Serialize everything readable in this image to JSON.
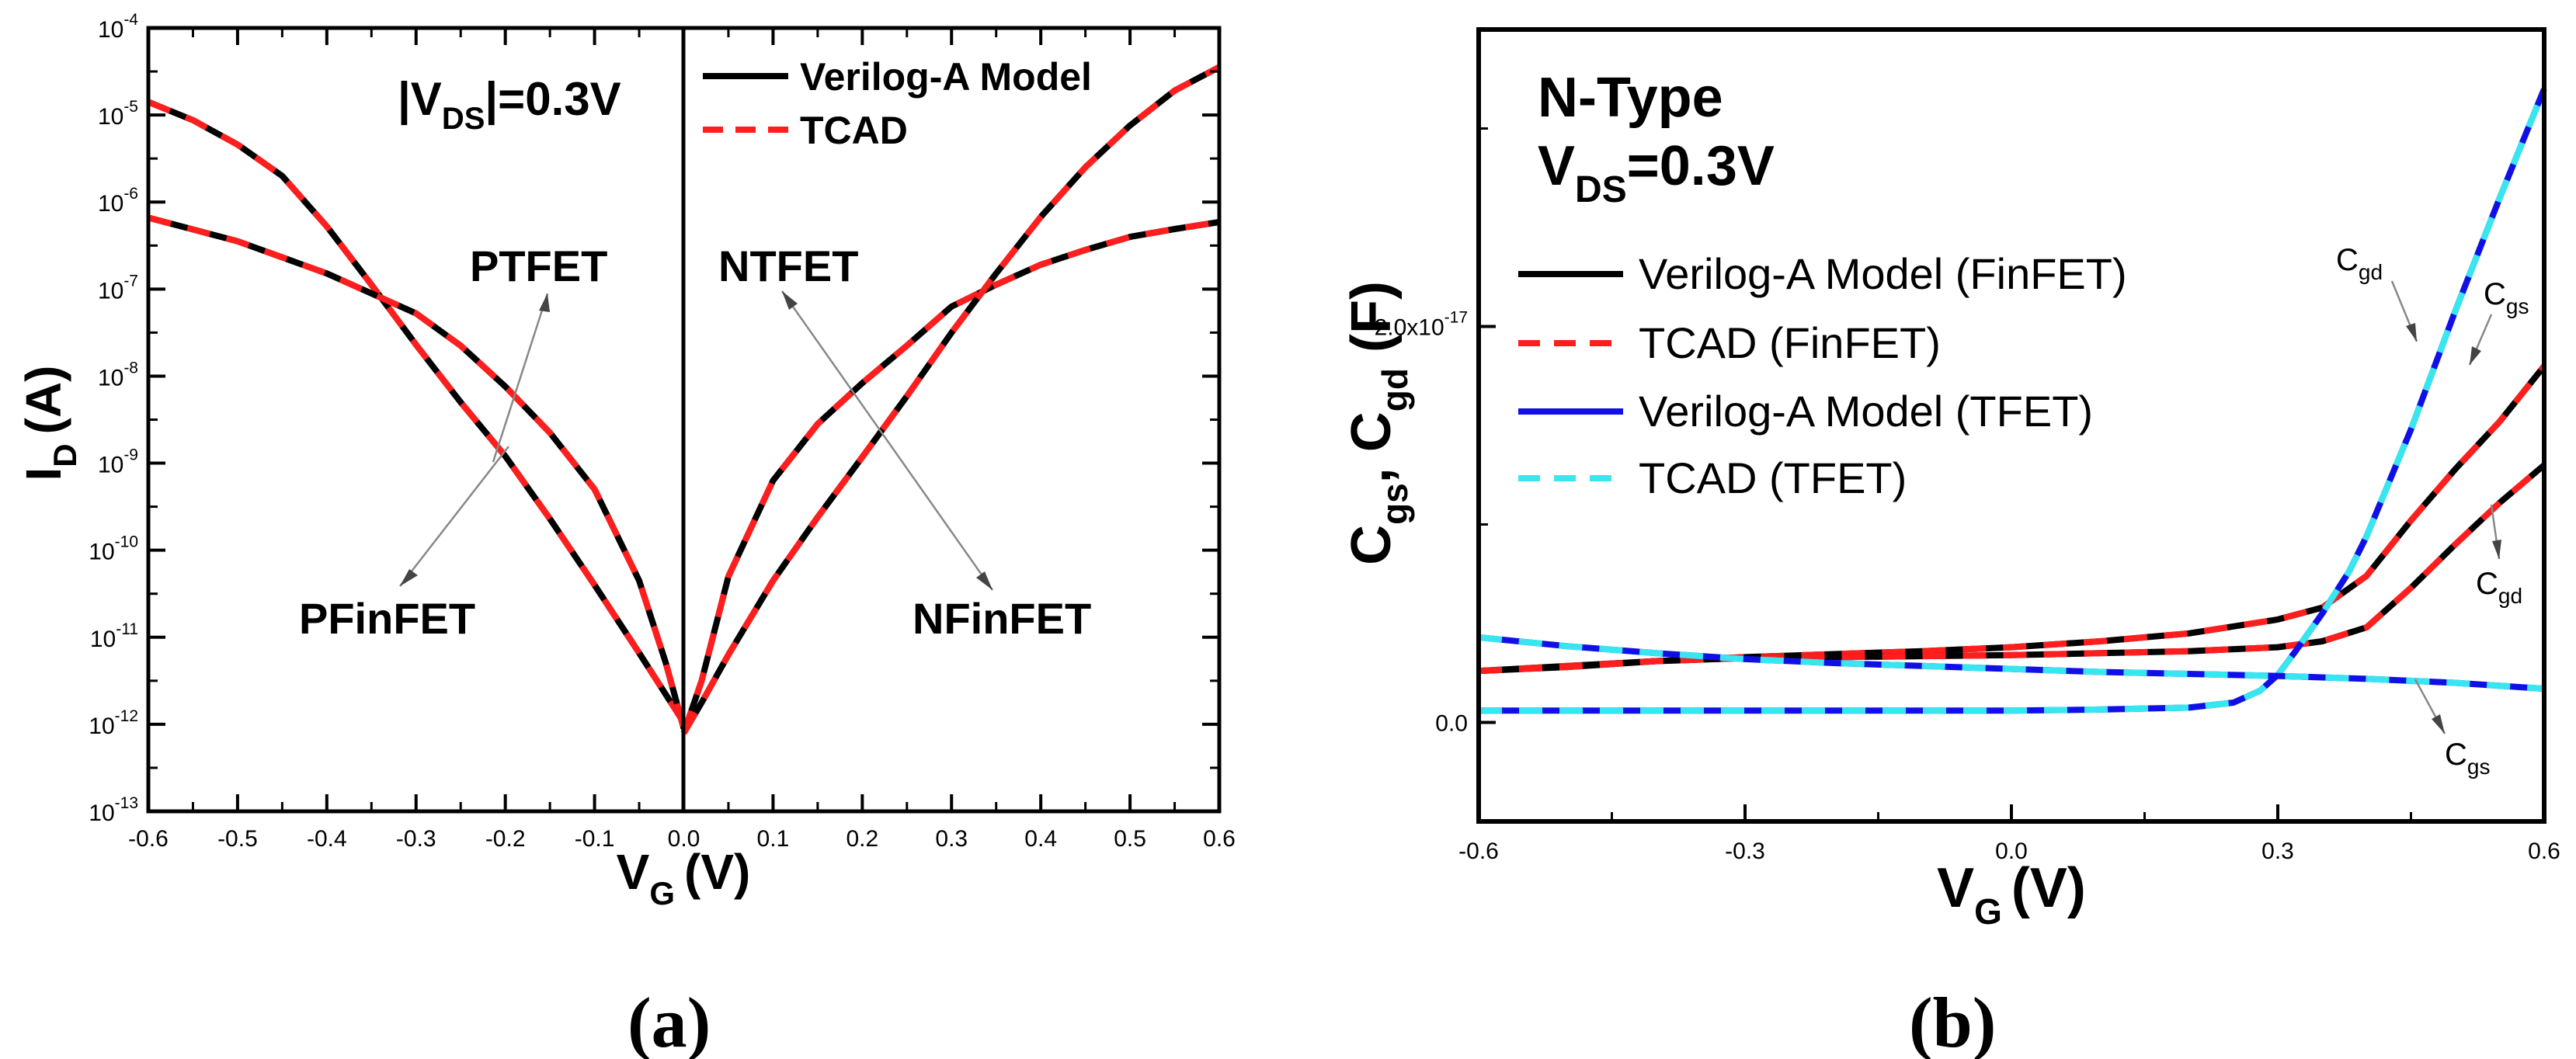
{
  "colors": {
    "black": "#000000",
    "red": "#ff1e1e",
    "blue": "#1010e6",
    "cyan": "#38e6f0"
  },
  "chart_data": [
    {
      "type": "line",
      "panel_label": "(a)",
      "title": "",
      "xlabel": "V",
      "xlabel_sub": "G",
      "xlabel_unit": "(V)",
      "ylabel": "I",
      "ylabel_sub": "D",
      "ylabel_unit": "(A)",
      "xlim": [
        -0.6,
        0.6
      ],
      "ylim_log10": [
        -13,
        -4
      ],
      "y_scale": "log",
      "x_ticks": [
        -0.6,
        -0.5,
        -0.4,
        -0.3,
        -0.2,
        -0.1,
        0.0,
        0.1,
        0.2,
        0.3,
        0.4,
        0.5,
        0.6
      ],
      "x_tick_labels": [
        "-0.6",
        "-0.5",
        "-0.4",
        "-0.3",
        "-0.2",
        "-0.1",
        "0.0",
        "0.1",
        "0.2",
        "0.3",
        "0.4",
        "0.5",
        "0.6"
      ],
      "y_tick_exponents": [
        -13,
        -12,
        -11,
        -10,
        -9,
        -8,
        -7,
        -6,
        -5,
        -4
      ],
      "y_tick_base": "10",
      "y_tick_exp_labels": [
        "-13",
        "-12",
        "-11",
        "-10",
        "-9",
        "-8",
        "-7",
        "-6",
        "-5",
        "-4"
      ],
      "condition_label": {
        "prefix": "|V",
        "sub": "DS",
        "suffix": "|=0.3V"
      },
      "legend": [
        {
          "label": "Verilog-A Model",
          "style": "solid",
          "color": "#000000"
        },
        {
          "label": "TCAD",
          "style": "dashed",
          "color": "#ff1e1e"
        }
      ],
      "annotations": [
        {
          "text": "PTFET",
          "series": "PTFET"
        },
        {
          "text": "NTFET",
          "series": "NTFET"
        },
        {
          "text": "PFinFET",
          "series": "PFinFET"
        },
        {
          "text": "NFinFET",
          "series": "NFinFET"
        }
      ],
      "series": [
        {
          "name": "PFinFET",
          "x": [
            -0.6,
            -0.55,
            -0.5,
            -0.45,
            -0.4,
            -0.35,
            -0.3,
            -0.25,
            -0.2,
            -0.15,
            -0.1,
            -0.05,
            -0.02,
            0.0
          ],
          "log10_y": [
            -4.85,
            -5.06,
            -5.34,
            -5.7,
            -6.28,
            -6.95,
            -7.64,
            -8.3,
            -8.92,
            -9.64,
            -10.4,
            -11.18,
            -11.66,
            -11.98
          ]
        },
        {
          "name": "PTFET",
          "x": [
            -0.6,
            -0.5,
            -0.4,
            -0.3,
            -0.25,
            -0.2,
            -0.15,
            -0.1,
            -0.05,
            -0.02,
            0.0
          ],
          "log10_y": [
            -6.18,
            -6.45,
            -6.82,
            -7.28,
            -7.65,
            -8.12,
            -8.65,
            -9.3,
            -10.35,
            -11.3,
            -12.05
          ]
        },
        {
          "name": "NTFET",
          "x": [
            0.0,
            0.02,
            0.05,
            0.1,
            0.15,
            0.2,
            0.25,
            0.3,
            0.35,
            0.4,
            0.45,
            0.5,
            0.55,
            0.6
          ],
          "log10_y": [
            -12.1,
            -11.5,
            -10.3,
            -9.2,
            -8.55,
            -8.08,
            -7.65,
            -7.2,
            -6.95,
            -6.72,
            -6.55,
            -6.4,
            -6.31,
            -6.23
          ]
        },
        {
          "name": "NFinFET",
          "x": [
            0.0,
            0.02,
            0.05,
            0.1,
            0.15,
            0.2,
            0.25,
            0.3,
            0.35,
            0.4,
            0.45,
            0.5,
            0.55,
            0.6
          ],
          "log10_y": [
            -12.1,
            -11.75,
            -11.2,
            -10.35,
            -9.62,
            -8.93,
            -8.23,
            -7.5,
            -6.82,
            -6.17,
            -5.6,
            -5.12,
            -4.72,
            -4.45
          ]
        }
      ]
    },
    {
      "type": "line",
      "panel_label": "(b)",
      "title": "",
      "xlabel": "V",
      "xlabel_sub": "G",
      "xlabel_unit": "(V)",
      "ylabel_parts": [
        {
          "t": "C",
          "sub": "gs"
        },
        {
          "t": ", "
        },
        {
          "t": "C",
          "sub": "gd"
        },
        {
          "t": " (F)"
        }
      ],
      "xlim": [
        -0.6,
        0.6
      ],
      "ylim": [
        -5e-18,
        3.5e-17
      ],
      "x_ticks": [
        -0.6,
        -0.3,
        0.0,
        0.3,
        0.6
      ],
      "x_tick_labels": [
        "-0.6",
        "-0.3",
        "0.0",
        "0.3",
        "0.6"
      ],
      "y_ticks": [
        0.0,
        2e-17
      ],
      "y_tick_labels": [
        {
          "base": "0.0",
          "exp": ""
        },
        {
          "base": "2.0x10",
          "exp": "-17"
        }
      ],
      "title_lines": [
        {
          "text": "N-Type"
        },
        {
          "prefix": "V",
          "sub": "DS",
          "suffix": "=0.3V"
        }
      ],
      "legend": [
        {
          "label": "Verilog-A Model (FinFET)",
          "style": "solid",
          "color": "#000000"
        },
        {
          "label": "TCAD (FinFET)",
          "style": "dashed",
          "color": "#ff1e1e"
        },
        {
          "label": "Verilog-A Model (TFET)",
          "style": "solid",
          "color": "#1010e6"
        },
        {
          "label": "TCAD (TFET)",
          "style": "dashed",
          "color": "#38e6f0"
        }
      ],
      "annotations": [
        {
          "t": "C",
          "sub": "gd",
          "series": "TFET Cgd"
        },
        {
          "t": "C",
          "sub": "gs",
          "series": "FinFET Cgs"
        },
        {
          "t": "C",
          "sub": "gd",
          "series": "FinFET Cgd"
        },
        {
          "t": "C",
          "sub": "gs",
          "series": "TFET Cgs"
        }
      ],
      "series": [
        {
          "name": "FinFET Cgs",
          "x": [
            -0.6,
            -0.5,
            -0.4,
            -0.3,
            -0.2,
            -0.1,
            0.0,
            0.1,
            0.2,
            0.3,
            0.35,
            0.4,
            0.45,
            0.5,
            0.55,
            0.6
          ],
          "y": [
            2.6e-18,
            2.85e-18,
            3.1e-18,
            3.3e-18,
            3.45e-18,
            3.6e-18,
            3.8e-18,
            4.1e-18,
            4.5e-18,
            5.2e-18,
            5.8e-18,
            7.4e-18,
            1.02e-17,
            1.28e-17,
            1.52e-17,
            1.8e-17
          ]
        },
        {
          "name": "FinFET Cgd",
          "x": [
            -0.6,
            -0.5,
            -0.4,
            -0.3,
            -0.2,
            -0.1,
            0.0,
            0.1,
            0.2,
            0.3,
            0.35,
            0.4,
            0.45,
            0.5,
            0.55,
            0.6
          ],
          "y": [
            2.6e-18,
            2.8e-18,
            3.1e-18,
            3.25e-18,
            3.3e-18,
            3.35e-18,
            3.4e-18,
            3.5e-18,
            3.6e-18,
            3.8e-18,
            4.1e-18,
            4.8e-18,
            6.8e-18,
            9e-18,
            1.11e-17,
            1.3e-17
          ]
        },
        {
          "name": "TFET Cgd",
          "x": [
            -0.6,
            -0.4,
            -0.2,
            0.0,
            0.1,
            0.2,
            0.25,
            0.28,
            0.3,
            0.32,
            0.35,
            0.38,
            0.4,
            0.45,
            0.5,
            0.55,
            0.6
          ],
          "y": [
            6e-19,
            6e-19,
            6e-19,
            6e-19,
            6.5e-19,
            7.5e-19,
            1e-18,
            1.6e-18,
            2.4e-18,
            3.6e-18,
            5.5e-18,
            7.6e-18,
            9.4e-18,
            1.48e-17,
            2.08e-17,
            2.65e-17,
            3.2e-17
          ]
        },
        {
          "name": "TFET Cgs",
          "x": [
            -0.6,
            -0.5,
            -0.4,
            -0.3,
            -0.2,
            -0.1,
            0.0,
            0.1,
            0.2,
            0.3,
            0.4,
            0.5,
            0.6
          ],
          "y": [
            4.3e-18,
            3.85e-18,
            3.5e-18,
            3.2e-18,
            3e-18,
            2.85e-18,
            2.7e-18,
            2.55e-18,
            2.45e-18,
            2.35e-18,
            2.2e-18,
            2e-18,
            1.7e-18
          ]
        }
      ]
    }
  ]
}
